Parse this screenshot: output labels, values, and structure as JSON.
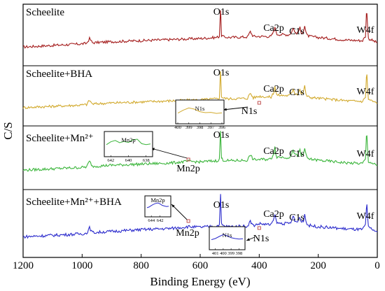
{
  "chart_data": {
    "type": "line",
    "title": "",
    "xlabel": "Binding Energy (eV)",
    "ylabel": "C/S",
    "xlim": [
      1200,
      0
    ],
    "x_reversed": true,
    "xticks": [
      1200,
      1000,
      800,
      600,
      400,
      200,
      0
    ],
    "grid": false,
    "series": [
      {
        "name": "Scheelite",
        "color": "#a31a1a",
        "x": [
          1200,
          1000,
          985,
          975,
          965,
          900,
          800,
          700,
          600,
          545,
          535,
          532,
          531,
          530,
          528,
          520,
          500,
          440,
          430,
          425,
          420,
          360,
          355,
          350,
          347,
          344,
          340,
          300,
          290,
          285,
          280,
          270,
          262,
          258,
          250,
          246,
          242,
          238,
          230,
          200,
          100,
          50,
          40,
          37,
          35,
          33,
          30,
          0
        ],
        "y": [
          0.3,
          0.36,
          0.37,
          0.46,
          0.38,
          0.4,
          0.42,
          0.44,
          0.46,
          0.48,
          0.5,
          0.93,
          1.0,
          0.86,
          0.52,
          0.49,
          0.48,
          0.49,
          0.59,
          0.54,
          0.5,
          0.5,
          0.55,
          0.6,
          0.7,
          0.6,
          0.54,
          0.53,
          0.58,
          0.67,
          0.58,
          0.56,
          0.66,
          0.56,
          0.6,
          0.7,
          0.58,
          0.52,
          0.5,
          0.48,
          0.43,
          0.42,
          0.5,
          0.92,
          0.95,
          0.7,
          0.46,
          0.38
        ]
      },
      {
        "name": "Scheelite+BHA",
        "color": "#d2aa2e",
        "x": [
          1200,
          1000,
          985,
          975,
          965,
          900,
          800,
          700,
          600,
          545,
          535,
          532,
          531,
          530,
          528,
          520,
          500,
          440,
          430,
          425,
          420,
          400,
          360,
          355,
          350,
          347,
          344,
          340,
          300,
          290,
          285,
          280,
          270,
          262,
          258,
          250,
          246,
          242,
          238,
          230,
          200,
          100,
          50,
          40,
          37,
          35,
          33,
          30,
          0
        ],
        "y": [
          0.3,
          0.35,
          0.36,
          0.44,
          0.37,
          0.39,
          0.41,
          0.43,
          0.45,
          0.47,
          0.49,
          0.93,
          1.0,
          0.86,
          0.51,
          0.48,
          0.47,
          0.48,
          0.58,
          0.53,
          0.49,
          0.52,
          0.5,
          0.55,
          0.61,
          0.72,
          0.61,
          0.54,
          0.53,
          0.58,
          0.67,
          0.58,
          0.56,
          0.66,
          0.56,
          0.6,
          0.72,
          0.58,
          0.52,
          0.5,
          0.48,
          0.43,
          0.42,
          0.5,
          0.9,
          0.93,
          0.68,
          0.46,
          0.38
        ]
      },
      {
        "name": "Scheelite+Mn²⁺",
        "color": "#3bb53b",
        "x": [
          1200,
          1000,
          985,
          975,
          965,
          900,
          800,
          700,
          640,
          600,
          545,
          535,
          532,
          531,
          530,
          528,
          520,
          500,
          440,
          430,
          425,
          420,
          360,
          355,
          350,
          347,
          344,
          340,
          300,
          290,
          285,
          280,
          270,
          262,
          258,
          250,
          246,
          242,
          238,
          230,
          200,
          100,
          50,
          40,
          37,
          35,
          33,
          30,
          0
        ],
        "y": [
          0.3,
          0.35,
          0.36,
          0.46,
          0.37,
          0.39,
          0.41,
          0.43,
          0.46,
          0.45,
          0.47,
          0.49,
          0.93,
          1.0,
          0.86,
          0.51,
          0.48,
          0.47,
          0.48,
          0.58,
          0.53,
          0.49,
          0.5,
          0.56,
          0.62,
          0.72,
          0.61,
          0.54,
          0.53,
          0.58,
          0.68,
          0.58,
          0.56,
          0.67,
          0.56,
          0.6,
          0.72,
          0.58,
          0.52,
          0.5,
          0.48,
          0.43,
          0.42,
          0.5,
          0.9,
          0.93,
          0.68,
          0.46,
          0.38
        ]
      },
      {
        "name": "Scheelite+Mn²⁺+BHA",
        "color": "#2a2acc",
        "x": [
          1200,
          1000,
          985,
          975,
          965,
          900,
          800,
          700,
          640,
          600,
          545,
          535,
          532,
          531,
          530,
          528,
          520,
          500,
          440,
          430,
          425,
          420,
          400,
          360,
          355,
          350,
          347,
          344,
          340,
          300,
          290,
          285,
          280,
          270,
          262,
          258,
          250,
          246,
          242,
          238,
          230,
          200,
          100,
          50,
          40,
          37,
          35,
          33,
          30,
          0
        ],
        "y": [
          0.3,
          0.35,
          0.36,
          0.45,
          0.37,
          0.39,
          0.42,
          0.44,
          0.47,
          0.46,
          0.48,
          0.5,
          0.93,
          1.0,
          0.85,
          0.51,
          0.48,
          0.47,
          0.48,
          0.56,
          0.52,
          0.49,
          0.52,
          0.5,
          0.55,
          0.6,
          0.7,
          0.6,
          0.53,
          0.52,
          0.56,
          0.66,
          0.56,
          0.55,
          0.64,
          0.55,
          0.58,
          0.69,
          0.56,
          0.51,
          0.49,
          0.47,
          0.43,
          0.42,
          0.5,
          0.78,
          0.82,
          0.62,
          0.46,
          0.38
        ]
      }
    ],
    "annotations": [
      {
        "panel": 0,
        "label": "O1s",
        "x": 531
      },
      {
        "panel": 0,
        "label": "Ca2p",
        "x": 347
      },
      {
        "panel": 0,
        "label": "C1s",
        "x": 285
      },
      {
        "panel": 0,
        "label": "W4f",
        "x": 35
      },
      {
        "panel": 1,
        "label": "O1s",
        "x": 531
      },
      {
        "panel": 1,
        "label": "Ca2p",
        "x": 347
      },
      {
        "panel": 1,
        "label": "C1s",
        "x": 285
      },
      {
        "panel": 1,
        "label": "W4f",
        "x": 35
      },
      {
        "panel": 1,
        "label": "N1s",
        "x": 400
      },
      {
        "panel": 2,
        "label": "O1s",
        "x": 531
      },
      {
        "panel": 2,
        "label": "Ca2p",
        "x": 347
      },
      {
        "panel": 2,
        "label": "C1s",
        "x": 285
      },
      {
        "panel": 2,
        "label": "W4f",
        "x": 35
      },
      {
        "panel": 2,
        "label": "Mn2p",
        "x": 640
      },
      {
        "panel": 3,
        "label": "O1s",
        "x": 531
      },
      {
        "panel": 3,
        "label": "Ca2p",
        "x": 347
      },
      {
        "panel": 3,
        "label": "C1s",
        "x": 285
      },
      {
        "panel": 3,
        "label": "W4f",
        "x": 35
      },
      {
        "panel": 3,
        "label": "Mn2p",
        "x": 640
      },
      {
        "panel": 3,
        "label": "N1s",
        "x": 400
      }
    ],
    "insets": [
      {
        "panel": 1,
        "label": "N1s",
        "series_color": "#d2aa2e",
        "xticks": [
          400,
          399,
          398,
          397,
          396
        ],
        "xlim": [
          400,
          396
        ],
        "x": [
          400,
          399.5,
          399,
          398.5,
          398,
          397.5,
          397,
          396.5,
          396
        ],
        "y": [
          0.35,
          0.55,
          0.7,
          0.62,
          0.45,
          0.38,
          0.4,
          0.33,
          0.36
        ]
      },
      {
        "panel": 2,
        "label": "Mn2p",
        "series_color": "#3bb53b",
        "xticks": [
          642,
          640,
          638
        ],
        "xlim": [
          642.5,
          637.5
        ],
        "x": [
          642.5,
          642,
          641.5,
          641,
          640.5,
          640,
          639.5,
          639,
          638.5,
          638,
          637.5
        ],
        "y": [
          0.4,
          0.58,
          0.66,
          0.52,
          0.6,
          0.54,
          0.7,
          0.74,
          0.46,
          0.4,
          0.45
        ]
      },
      {
        "panel": 3,
        "label": "Mn2p",
        "series_color": "#2a2acc",
        "xticks": [
          644,
          642
        ],
        "xlim": [
          645,
          640
        ],
        "x": [
          645,
          644.5,
          644,
          643.5,
          643,
          642.5,
          642,
          641.5,
          641,
          640.5,
          640
        ],
        "y": [
          0.3,
          0.36,
          0.48,
          0.58,
          0.66,
          0.7,
          0.62,
          0.5,
          0.44,
          0.4,
          0.42
        ]
      },
      {
        "panel": 3,
        "label": "N1s",
        "series_color": "#2a2acc",
        "xticks": [
          401,
          400,
          399,
          398
        ],
        "xlim": [
          401.5,
          397.5
        ],
        "x": [
          401.5,
          401,
          400.5,
          400,
          399.5,
          399,
          398.5,
          398,
          397.5
        ],
        "y": [
          0.32,
          0.4,
          0.55,
          0.68,
          0.6,
          0.46,
          0.4,
          0.36,
          0.38
        ]
      }
    ]
  }
}
